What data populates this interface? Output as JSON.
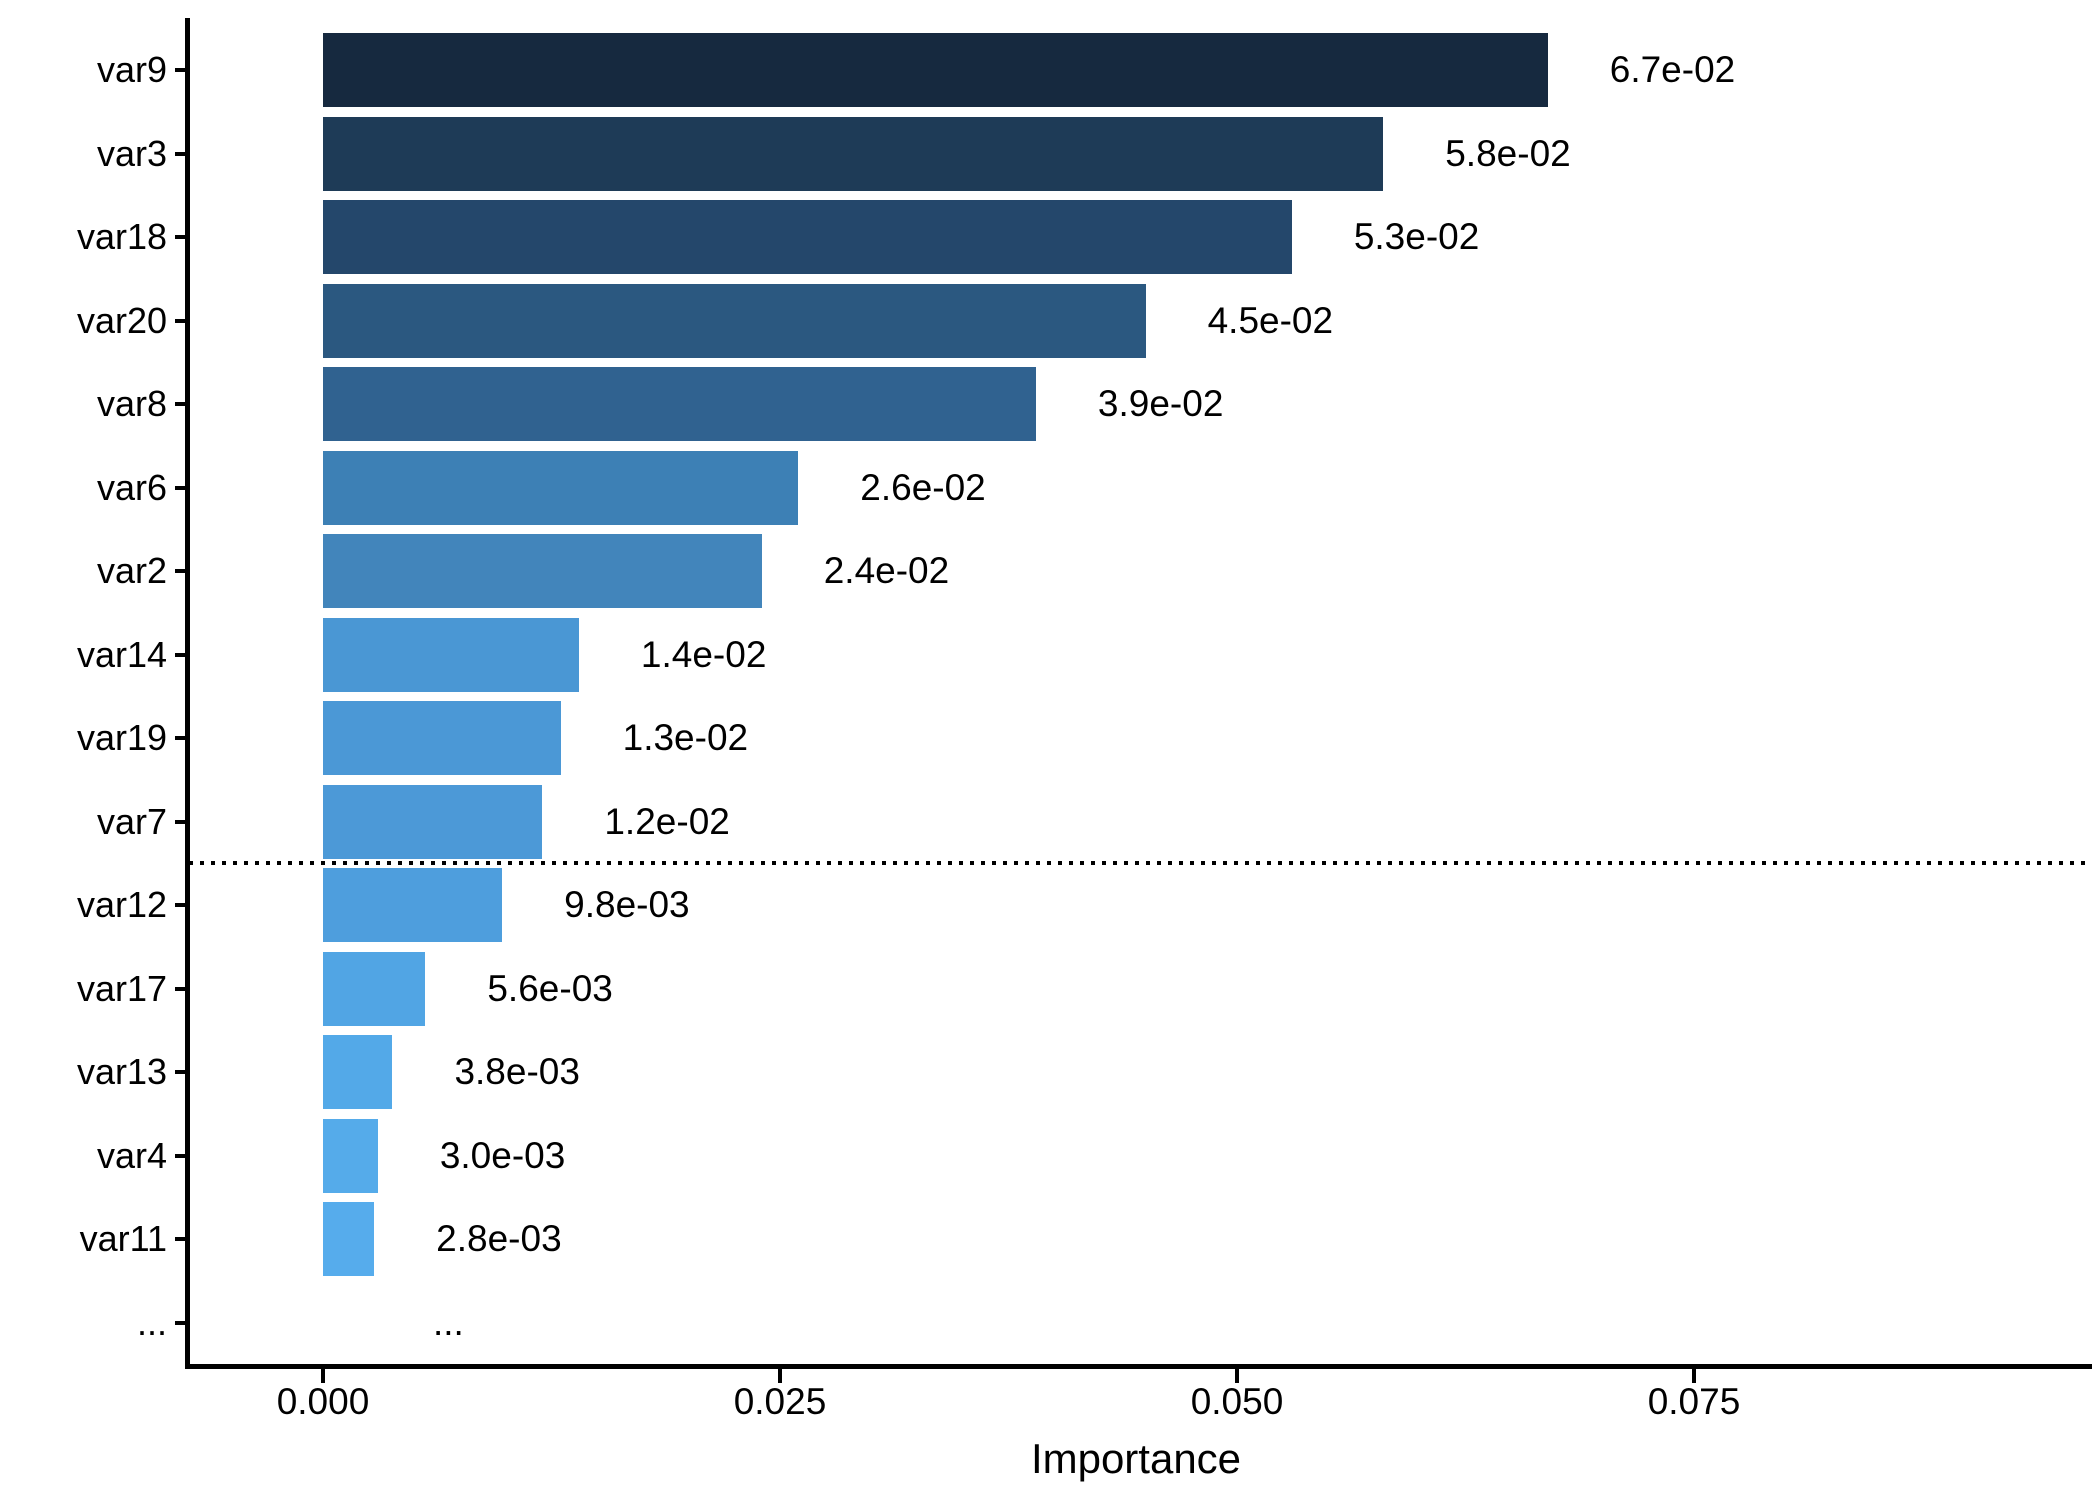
{
  "chart_data": {
    "type": "bar",
    "orientation": "horizontal",
    "title": "",
    "xlabel": "Importance",
    "ylabel": "",
    "categories": [
      "var9",
      "var3",
      "var18",
      "var20",
      "var8",
      "var6",
      "var2",
      "var14",
      "var19",
      "var7",
      "var12",
      "var17",
      "var13",
      "var4",
      "var11",
      "..."
    ],
    "values": [
      0.067,
      0.058,
      0.053,
      0.045,
      0.039,
      0.026,
      0.024,
      0.014,
      0.013,
      0.012,
      0.0098,
      0.0056,
      0.0038,
      0.003,
      0.0028,
      null
    ],
    "value_labels": [
      "6.7e-02",
      "5.8e-02",
      "5.3e-02",
      "4.5e-02",
      "3.9e-02",
      "2.6e-02",
      "2.4e-02",
      "1.4e-02",
      "1.3e-02",
      "1.2e-02",
      "9.8e-03",
      "5.6e-03",
      "3.8e-03",
      "3.0e-03",
      "2.8e-03",
      "..."
    ],
    "bar_colors": [
      "#16293F",
      "#1E3B57",
      "#24476B",
      "#2B5880",
      "#306290",
      "#3D80B5",
      "#4285BB",
      "#4A97D4",
      "#4B98D6",
      "#4C99D7",
      "#4E9EDD",
      "#51A5E4",
      "#53A9E8",
      "#55ABEA",
      "#56ACEC"
    ],
    "color_scale": {
      "high_value_color": "#132B43",
      "low_value_color": "#56B1F7"
    },
    "x_ticks": [
      {
        "value": 0.0,
        "label": "0.000"
      },
      {
        "value": 0.025,
        "label": "0.025"
      },
      {
        "value": 0.05,
        "label": "0.050"
      },
      {
        "value": 0.075,
        "label": "0.075"
      }
    ],
    "x_range_shown": [
      -0.0075,
      0.0965
    ],
    "grid": "off",
    "legend": "none",
    "threshold_line": {
      "style": "dotted",
      "color": "#000000",
      "between_categories": [
        "var7",
        "var12"
      ]
    },
    "axis_color": "#000000",
    "text_color": "#000000",
    "background_color": "#FFFFFF"
  }
}
